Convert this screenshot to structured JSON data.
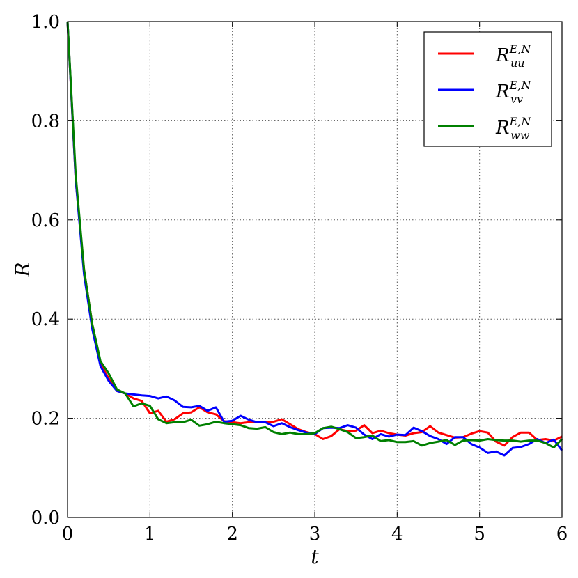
{
  "chart_data": {
    "type": "line",
    "xlabel": "t",
    "ylabel": "R",
    "xlim": [
      0,
      6
    ],
    "ylim": [
      0,
      1.0
    ],
    "x_ticks": [
      "0",
      "1",
      "2",
      "3",
      "4",
      "5",
      "6"
    ],
    "y_ticks": [
      "0.0",
      "0.2",
      "0.4",
      "0.6",
      "0.8",
      "1.0"
    ],
    "grid": true,
    "legend_position": "top-right",
    "x": [
      0,
      0.1,
      0.2,
      0.3,
      0.4,
      0.5,
      0.6,
      0.7,
      0.8,
      0.9,
      1.0,
      1.1,
      1.2,
      1.3,
      1.4,
      1.5,
      1.6,
      1.7,
      1.8,
      1.9,
      2.0,
      2.1,
      2.2,
      2.3,
      2.4,
      2.5,
      2.6,
      2.7,
      2.8,
      2.9,
      3.0,
      3.1,
      3.2,
      3.3,
      3.4,
      3.5,
      3.6,
      3.7,
      3.8,
      3.9,
      4.0,
      4.1,
      4.2,
      4.3,
      4.4,
      4.5,
      4.6,
      4.7,
      4.8,
      4.9,
      5.0,
      5.1,
      5.2,
      5.3,
      5.4,
      5.5,
      5.6,
      5.7,
      5.8,
      5.9,
      6.0
    ],
    "series": [
      {
        "label_main": "R",
        "label_sup": "E,N",
        "label_sub": "uu",
        "color": "#ff0000",
        "values": [
          1.0,
          0.68,
          0.5,
          0.39,
          0.31,
          0.28,
          0.255,
          0.25,
          0.24,
          0.235,
          0.21,
          0.215,
          0.193,
          0.198,
          0.21,
          0.212,
          0.222,
          0.212,
          0.208,
          0.194,
          0.192,
          0.19,
          0.192,
          0.193,
          0.193,
          0.193,
          0.198,
          0.188,
          0.178,
          0.172,
          0.168,
          0.158,
          0.164,
          0.178,
          0.174,
          0.175,
          0.186,
          0.17,
          0.175,
          0.17,
          0.167,
          0.165,
          0.17,
          0.172,
          0.184,
          0.171,
          0.166,
          0.161,
          0.162,
          0.169,
          0.174,
          0.171,
          0.153,
          0.145,
          0.162,
          0.171,
          0.171,
          0.156,
          0.158,
          0.155,
          0.163
        ]
      },
      {
        "label_main": "R",
        "label_sup": "E,N",
        "label_sub": "vv",
        "color": "#0000ff",
        "values": [
          1.0,
          0.68,
          0.49,
          0.38,
          0.305,
          0.275,
          0.255,
          0.25,
          0.248,
          0.246,
          0.245,
          0.24,
          0.244,
          0.236,
          0.223,
          0.222,
          0.225,
          0.215,
          0.222,
          0.193,
          0.195,
          0.205,
          0.197,
          0.192,
          0.192,
          0.184,
          0.19,
          0.182,
          0.176,
          0.171,
          0.168,
          0.18,
          0.181,
          0.18,
          0.186,
          0.181,
          0.167,
          0.158,
          0.168,
          0.163,
          0.167,
          0.166,
          0.181,
          0.174,
          0.164,
          0.158,
          0.148,
          0.162,
          0.162,
          0.148,
          0.141,
          0.13,
          0.133,
          0.125,
          0.14,
          0.142,
          0.148,
          0.158,
          0.15,
          0.157,
          0.135
        ]
      },
      {
        "label_main": "R",
        "label_sup": "E,N",
        "label_sub": "ww",
        "color": "#008000",
        "values": [
          1.0,
          0.69,
          0.5,
          0.39,
          0.315,
          0.29,
          0.258,
          0.25,
          0.224,
          0.23,
          0.225,
          0.198,
          0.19,
          0.192,
          0.192,
          0.197,
          0.185,
          0.188,
          0.193,
          0.19,
          0.188,
          0.186,
          0.18,
          0.179,
          0.182,
          0.172,
          0.168,
          0.171,
          0.168,
          0.168,
          0.17,
          0.18,
          0.183,
          0.178,
          0.172,
          0.16,
          0.162,
          0.165,
          0.154,
          0.156,
          0.152,
          0.152,
          0.154,
          0.145,
          0.15,
          0.153,
          0.156,
          0.146,
          0.155,
          0.156,
          0.155,
          0.158,
          0.156,
          0.155,
          0.155,
          0.153,
          0.155,
          0.155,
          0.15,
          0.141,
          0.158
        ]
      }
    ]
  }
}
